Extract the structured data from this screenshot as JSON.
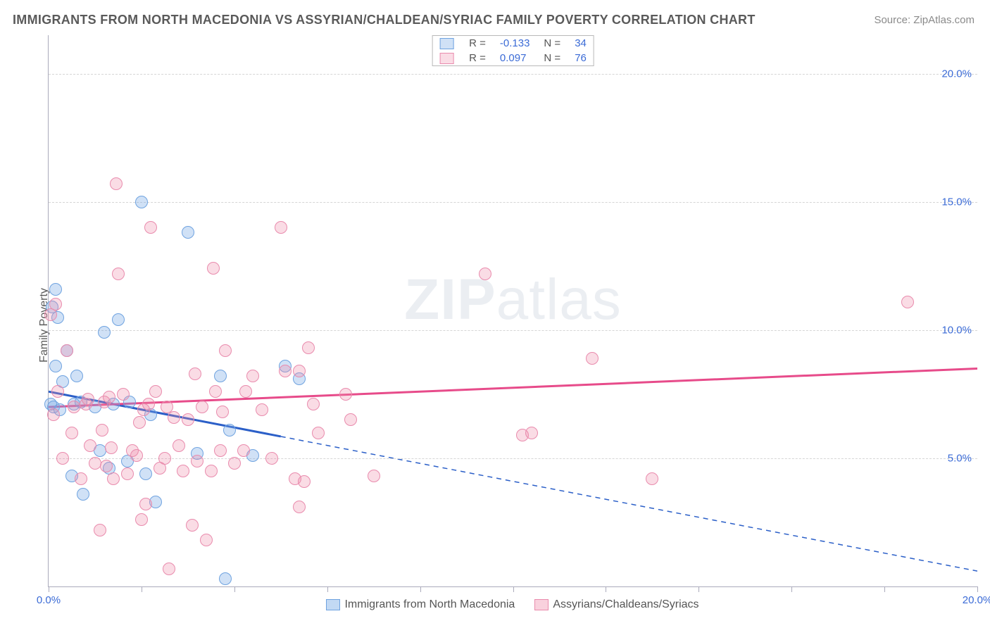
{
  "title": "IMMIGRANTS FROM NORTH MACEDONIA VS ASSYRIAN/CHALDEAN/SYRIAC FAMILY POVERTY CORRELATION CHART",
  "source": "Source: ZipAtlas.com",
  "ylabel": "Family Poverty",
  "watermark": {
    "bold": "ZIP",
    "light": "atlas"
  },
  "chart": {
    "type": "scatter",
    "xlim": [
      0,
      20
    ],
    "ylim": [
      0,
      21.5
    ],
    "background_color": "#ffffff",
    "grid_color": "#d5d5d5",
    "grid_dash": true,
    "ygrid": [
      5,
      10,
      15,
      20
    ],
    "yticks": [
      {
        "v": 5,
        "label": "5.0%"
      },
      {
        "v": 10,
        "label": "10.0%"
      },
      {
        "v": 15,
        "label": "15.0%"
      },
      {
        "v": 20,
        "label": "20.0%"
      }
    ],
    "xticks": [
      {
        "v": 0,
        "label": "0.0%"
      },
      {
        "v": 2
      },
      {
        "v": 4
      },
      {
        "v": 6
      },
      {
        "v": 8
      },
      {
        "v": 10
      },
      {
        "v": 12
      },
      {
        "v": 14
      },
      {
        "v": 16
      },
      {
        "v": 18
      },
      {
        "v": 20,
        "label": "20.0%"
      }
    ],
    "series": [
      {
        "name": "Immigrants from North Macedonia",
        "fill": "rgba(120,170,230,0.35)",
        "stroke": "#6fa3e0",
        "line_color": "#2b5fc8",
        "marker_r": 9,
        "R": "-0.133",
        "N": "34",
        "regression": {
          "x1": 0,
          "y1": 7.6,
          "x2": 20,
          "y2": 0.6,
          "solid_until_x": 5
        },
        "points": [
          [
            0.05,
            7.1
          ],
          [
            0.08,
            10.9
          ],
          [
            0.1,
            7.0
          ],
          [
            0.15,
            8.6
          ],
          [
            0.15,
            11.6
          ],
          [
            0.2,
            10.5
          ],
          [
            0.25,
            6.9
          ],
          [
            0.3,
            8.0
          ],
          [
            0.4,
            9.2
          ],
          [
            0.5,
            4.3
          ],
          [
            0.55,
            7.1
          ],
          [
            0.6,
            8.2
          ],
          [
            0.7,
            7.2
          ],
          [
            0.75,
            3.6
          ],
          [
            1.0,
            7.0
          ],
          [
            1.1,
            5.3
          ],
          [
            1.2,
            9.9
          ],
          [
            1.3,
            4.6
          ],
          [
            1.4,
            7.1
          ],
          [
            1.5,
            10.4
          ],
          [
            1.7,
            4.9
          ],
          [
            1.75,
            7.2
          ],
          [
            2.0,
            15.0
          ],
          [
            2.1,
            4.4
          ],
          [
            2.2,
            6.7
          ],
          [
            2.3,
            3.3
          ],
          [
            3.0,
            13.8
          ],
          [
            3.2,
            5.2
          ],
          [
            3.7,
            8.2
          ],
          [
            3.8,
            0.3
          ],
          [
            3.9,
            6.1
          ],
          [
            4.4,
            5.1
          ],
          [
            5.1,
            8.6
          ],
          [
            5.4,
            8.1
          ]
        ]
      },
      {
        "name": "Assyrians/Chaldeans/Syriacs",
        "fill": "rgba(240,140,170,0.30)",
        "stroke": "#e98bad",
        "line_color": "#e74b8a",
        "marker_r": 9,
        "R": "0.097",
        "N": "76",
        "regression": {
          "x1": 0,
          "y1": 7.0,
          "x2": 20,
          "y2": 8.5,
          "solid_until_x": 20
        },
        "points": [
          [
            0.05,
            10.6
          ],
          [
            0.1,
            6.7
          ],
          [
            0.15,
            11.0
          ],
          [
            0.2,
            7.6
          ],
          [
            0.3,
            5.0
          ],
          [
            0.4,
            9.2
          ],
          [
            0.5,
            6.0
          ],
          [
            0.55,
            7.0
          ],
          [
            0.7,
            4.2
          ],
          [
            0.8,
            7.1
          ],
          [
            0.85,
            7.3
          ],
          [
            0.9,
            5.5
          ],
          [
            1.0,
            4.8
          ],
          [
            1.1,
            2.2
          ],
          [
            1.15,
            6.1
          ],
          [
            1.2,
            7.2
          ],
          [
            1.25,
            4.7
          ],
          [
            1.3,
            7.4
          ],
          [
            1.35,
            5.4
          ],
          [
            1.4,
            4.2
          ],
          [
            1.45,
            15.7
          ],
          [
            1.5,
            12.2
          ],
          [
            1.6,
            7.5
          ],
          [
            1.7,
            4.4
          ],
          [
            1.8,
            5.3
          ],
          [
            1.9,
            5.1
          ],
          [
            1.95,
            6.4
          ],
          [
            2.0,
            2.6
          ],
          [
            2.05,
            6.9
          ],
          [
            2.1,
            3.2
          ],
          [
            2.15,
            7.1
          ],
          [
            2.2,
            14.0
          ],
          [
            2.3,
            7.6
          ],
          [
            2.4,
            4.6
          ],
          [
            2.5,
            5.0
          ],
          [
            2.55,
            7.0
          ],
          [
            2.6,
            0.7
          ],
          [
            2.7,
            6.6
          ],
          [
            2.8,
            5.5
          ],
          [
            2.9,
            4.5
          ],
          [
            3.0,
            6.5
          ],
          [
            3.1,
            2.4
          ],
          [
            3.2,
            4.9
          ],
          [
            3.3,
            7.0
          ],
          [
            3.4,
            1.8
          ],
          [
            3.5,
            4.5
          ],
          [
            3.55,
            12.4
          ],
          [
            3.6,
            7.6
          ],
          [
            3.7,
            5.3
          ],
          [
            3.75,
            6.8
          ],
          [
            3.8,
            9.2
          ],
          [
            4.0,
            4.8
          ],
          [
            4.2,
            5.3
          ],
          [
            4.25,
            7.6
          ],
          [
            4.4,
            8.2
          ],
          [
            4.6,
            6.9
          ],
          [
            4.8,
            5.0
          ],
          [
            5.0,
            14.0
          ],
          [
            5.1,
            8.4
          ],
          [
            5.3,
            4.2
          ],
          [
            5.4,
            3.1
          ],
          [
            5.4,
            8.4
          ],
          [
            5.5,
            4.1
          ],
          [
            5.6,
            9.3
          ],
          [
            5.7,
            7.1
          ],
          [
            5.8,
            6.0
          ],
          [
            6.4,
            7.5
          ],
          [
            6.5,
            6.5
          ],
          [
            7.0,
            4.3
          ],
          [
            9.4,
            12.2
          ],
          [
            10.2,
            5.9
          ],
          [
            10.4,
            6.0
          ],
          [
            11.7,
            8.9
          ],
          [
            13.0,
            4.2
          ],
          [
            18.5,
            11.1
          ],
          [
            3.15,
            8.3
          ]
        ]
      }
    ]
  },
  "legend_bottom": [
    {
      "label": "Immigrants from North Macedonia",
      "fill": "rgba(120,170,230,0.45)",
      "stroke": "#6fa3e0"
    },
    {
      "label": "Assyrians/Chaldeans/Syriacs",
      "fill": "rgba(240,140,170,0.40)",
      "stroke": "#e98bad"
    }
  ]
}
